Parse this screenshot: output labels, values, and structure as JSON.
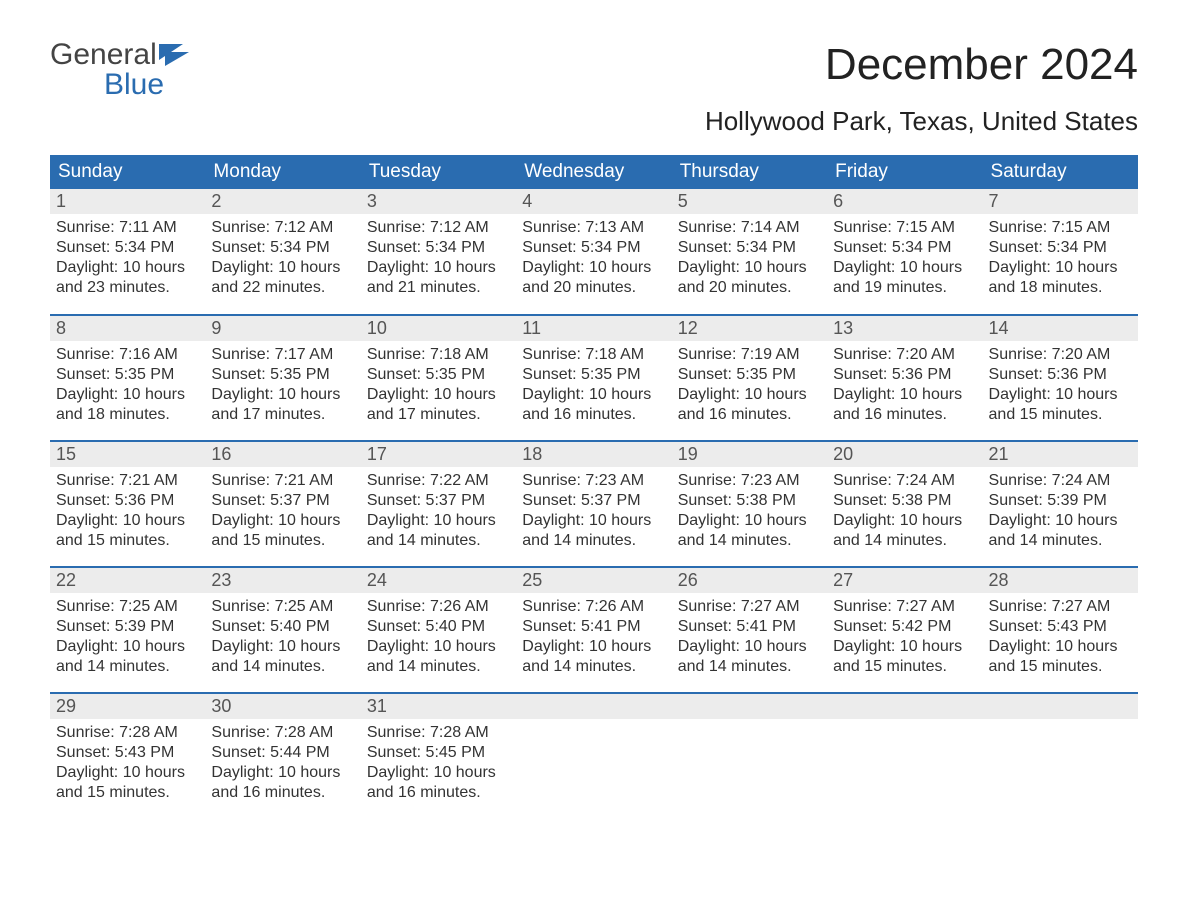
{
  "logo": {
    "word1": "General",
    "word2": "Blue",
    "accent": "#2a6cb0",
    "icon_color": "#2a6cb0"
  },
  "title": "December 2024",
  "subtitle": "Hollywood Park, Texas, United States",
  "colors": {
    "header_bg": "#2a6cb0",
    "header_text": "#ffffff",
    "daynum_bg": "#ececec",
    "row_border": "#2a6cb0",
    "body_text": "#333333",
    "page_bg": "#ffffff"
  },
  "layout": {
    "columns": 7,
    "rows": 5,
    "first_day_column": 0
  },
  "day_headers": [
    "Sunday",
    "Monday",
    "Tuesday",
    "Wednesday",
    "Thursday",
    "Friday",
    "Saturday"
  ],
  "days": [
    {
      "n": 1,
      "sunrise": "7:11 AM",
      "sunset": "5:34 PM",
      "daylight": "10 hours and 23 minutes."
    },
    {
      "n": 2,
      "sunrise": "7:12 AM",
      "sunset": "5:34 PM",
      "daylight": "10 hours and 22 minutes."
    },
    {
      "n": 3,
      "sunrise": "7:12 AM",
      "sunset": "5:34 PM",
      "daylight": "10 hours and 21 minutes."
    },
    {
      "n": 4,
      "sunrise": "7:13 AM",
      "sunset": "5:34 PM",
      "daylight": "10 hours and 20 minutes."
    },
    {
      "n": 5,
      "sunrise": "7:14 AM",
      "sunset": "5:34 PM",
      "daylight": "10 hours and 20 minutes."
    },
    {
      "n": 6,
      "sunrise": "7:15 AM",
      "sunset": "5:34 PM",
      "daylight": "10 hours and 19 minutes."
    },
    {
      "n": 7,
      "sunrise": "7:15 AM",
      "sunset": "5:34 PM",
      "daylight": "10 hours and 18 minutes."
    },
    {
      "n": 8,
      "sunrise": "7:16 AM",
      "sunset": "5:35 PM",
      "daylight": "10 hours and 18 minutes."
    },
    {
      "n": 9,
      "sunrise": "7:17 AM",
      "sunset": "5:35 PM",
      "daylight": "10 hours and 17 minutes."
    },
    {
      "n": 10,
      "sunrise": "7:18 AM",
      "sunset": "5:35 PM",
      "daylight": "10 hours and 17 minutes."
    },
    {
      "n": 11,
      "sunrise": "7:18 AM",
      "sunset": "5:35 PM",
      "daylight": "10 hours and 16 minutes."
    },
    {
      "n": 12,
      "sunrise": "7:19 AM",
      "sunset": "5:35 PM",
      "daylight": "10 hours and 16 minutes."
    },
    {
      "n": 13,
      "sunrise": "7:20 AM",
      "sunset": "5:36 PM",
      "daylight": "10 hours and 16 minutes."
    },
    {
      "n": 14,
      "sunrise": "7:20 AM",
      "sunset": "5:36 PM",
      "daylight": "10 hours and 15 minutes."
    },
    {
      "n": 15,
      "sunrise": "7:21 AM",
      "sunset": "5:36 PM",
      "daylight": "10 hours and 15 minutes."
    },
    {
      "n": 16,
      "sunrise": "7:21 AM",
      "sunset": "5:37 PM",
      "daylight": "10 hours and 15 minutes."
    },
    {
      "n": 17,
      "sunrise": "7:22 AM",
      "sunset": "5:37 PM",
      "daylight": "10 hours and 14 minutes."
    },
    {
      "n": 18,
      "sunrise": "7:23 AM",
      "sunset": "5:37 PM",
      "daylight": "10 hours and 14 minutes."
    },
    {
      "n": 19,
      "sunrise": "7:23 AM",
      "sunset": "5:38 PM",
      "daylight": "10 hours and 14 minutes."
    },
    {
      "n": 20,
      "sunrise": "7:24 AM",
      "sunset": "5:38 PM",
      "daylight": "10 hours and 14 minutes."
    },
    {
      "n": 21,
      "sunrise": "7:24 AM",
      "sunset": "5:39 PM",
      "daylight": "10 hours and 14 minutes."
    },
    {
      "n": 22,
      "sunrise": "7:25 AM",
      "sunset": "5:39 PM",
      "daylight": "10 hours and 14 minutes."
    },
    {
      "n": 23,
      "sunrise": "7:25 AM",
      "sunset": "5:40 PM",
      "daylight": "10 hours and 14 minutes."
    },
    {
      "n": 24,
      "sunrise": "7:26 AM",
      "sunset": "5:40 PM",
      "daylight": "10 hours and 14 minutes."
    },
    {
      "n": 25,
      "sunrise": "7:26 AM",
      "sunset": "5:41 PM",
      "daylight": "10 hours and 14 minutes."
    },
    {
      "n": 26,
      "sunrise": "7:27 AM",
      "sunset": "5:41 PM",
      "daylight": "10 hours and 14 minutes."
    },
    {
      "n": 27,
      "sunrise": "7:27 AM",
      "sunset": "5:42 PM",
      "daylight": "10 hours and 15 minutes."
    },
    {
      "n": 28,
      "sunrise": "7:27 AM",
      "sunset": "5:43 PM",
      "daylight": "10 hours and 15 minutes."
    },
    {
      "n": 29,
      "sunrise": "7:28 AM",
      "sunset": "5:43 PM",
      "daylight": "10 hours and 15 minutes."
    },
    {
      "n": 30,
      "sunrise": "7:28 AM",
      "sunset": "5:44 PM",
      "daylight": "10 hours and 16 minutes."
    },
    {
      "n": 31,
      "sunrise": "7:28 AM",
      "sunset": "5:45 PM",
      "daylight": "10 hours and 16 minutes."
    }
  ],
  "labels": {
    "sunrise": "Sunrise:",
    "sunset": "Sunset:",
    "daylight": "Daylight:"
  }
}
